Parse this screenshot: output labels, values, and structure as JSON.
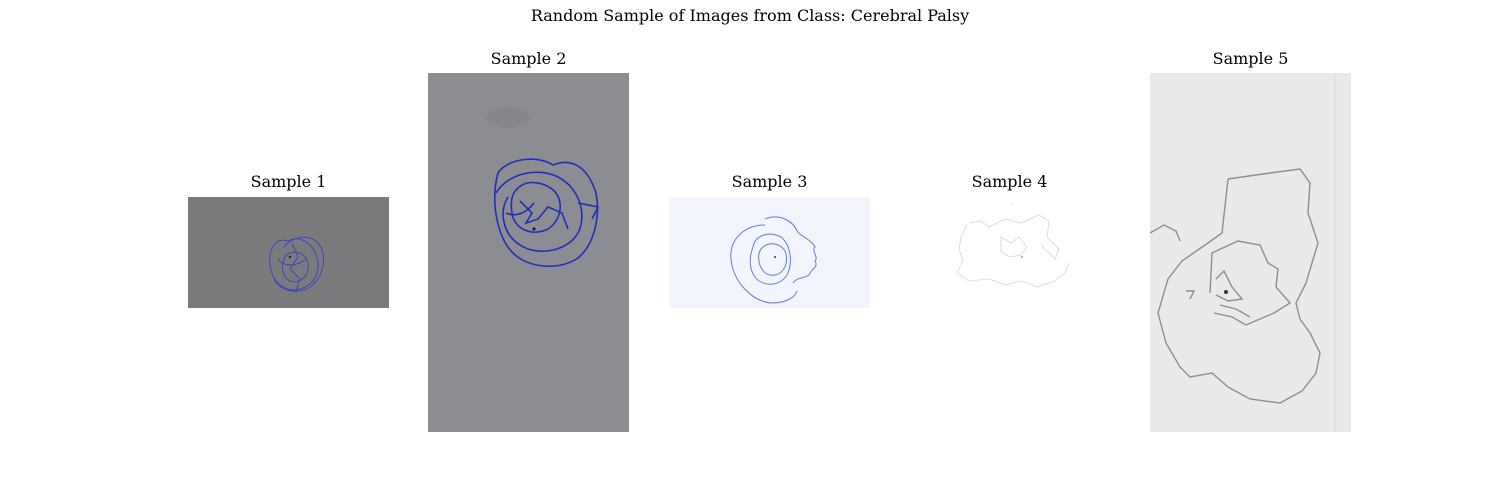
{
  "figure": {
    "suptitle": "Random Sample of Images from Class: Cerebral Palsy"
  },
  "samples": [
    {
      "title": "Sample 1",
      "background": "#7a7a7c",
      "ink": "#3c46c0"
    },
    {
      "title": "Sample 2",
      "background": "#8c8c93",
      "ink": "#1f2fb8"
    },
    {
      "title": "Sample 3",
      "background": "#f3f5fd",
      "ink": "#6478de"
    },
    {
      "title": "Sample 4",
      "background": "#ffffff",
      "ink": "#d6d6d6"
    },
    {
      "title": "Sample 5",
      "background": "#e9e9ec",
      "ink": "#8e8e8e"
    }
  ]
}
